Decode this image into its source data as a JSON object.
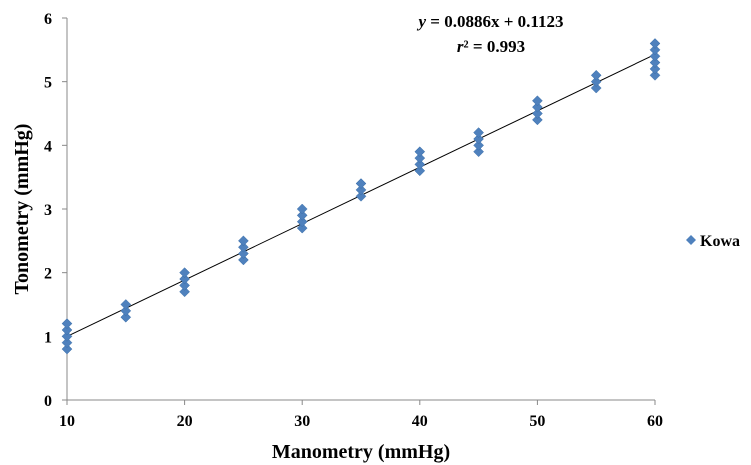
{
  "chart_data": {
    "type": "scatter",
    "xlabel": "Manometry (mmHg)",
    "ylabel": "Tonometry (mmHg)",
    "xlim": [
      10,
      60
    ],
    "ylim": [
      0,
      6
    ],
    "xticks": [
      "10",
      "20",
      "30",
      "40",
      "50",
      "60"
    ],
    "yticks": [
      "0",
      "1",
      "2",
      "3",
      "4",
      "5",
      "6"
    ],
    "grid": false,
    "legend_position": "right",
    "series": [
      {
        "name": "Kowa",
        "color": "#4F81BD",
        "marker": "diamond",
        "points": [
          {
            "x": 10,
            "y": 0.8
          },
          {
            "x": 10,
            "y": 0.9
          },
          {
            "x": 10,
            "y": 1.0
          },
          {
            "x": 10,
            "y": 1.1
          },
          {
            "x": 10,
            "y": 1.2
          },
          {
            "x": 15,
            "y": 1.3
          },
          {
            "x": 15,
            "y": 1.4
          },
          {
            "x": 15,
            "y": 1.5
          },
          {
            "x": 20,
            "y": 1.7
          },
          {
            "x": 20,
            "y": 1.8
          },
          {
            "x": 20,
            "y": 1.9
          },
          {
            "x": 20,
            "y": 2.0
          },
          {
            "x": 25,
            "y": 2.2
          },
          {
            "x": 25,
            "y": 2.3
          },
          {
            "x": 25,
            "y": 2.4
          },
          {
            "x": 25,
            "y": 2.5
          },
          {
            "x": 30,
            "y": 2.7
          },
          {
            "x": 30,
            "y": 2.8
          },
          {
            "x": 30,
            "y": 2.9
          },
          {
            "x": 30,
            "y": 3.0
          },
          {
            "x": 35,
            "y": 3.2
          },
          {
            "x": 35,
            "y": 3.3
          },
          {
            "x": 35,
            "y": 3.4
          },
          {
            "x": 40,
            "y": 3.6
          },
          {
            "x": 40,
            "y": 3.7
          },
          {
            "x": 40,
            "y": 3.8
          },
          {
            "x": 40,
            "y": 3.9
          },
          {
            "x": 45,
            "y": 3.9
          },
          {
            "x": 45,
            "y": 4.0
          },
          {
            "x": 45,
            "y": 4.1
          },
          {
            "x": 45,
            "y": 4.2
          },
          {
            "x": 50,
            "y": 4.4
          },
          {
            "x": 50,
            "y": 4.5
          },
          {
            "x": 50,
            "y": 4.6
          },
          {
            "x": 50,
            "y": 4.7
          },
          {
            "x": 55,
            "y": 4.9
          },
          {
            "x": 55,
            "y": 5.0
          },
          {
            "x": 55,
            "y": 5.1
          },
          {
            "x": 60,
            "y": 5.1
          },
          {
            "x": 60,
            "y": 5.2
          },
          {
            "x": 60,
            "y": 5.3
          },
          {
            "x": 60,
            "y": 5.4
          },
          {
            "x": 60,
            "y": 5.5
          },
          {
            "x": 60,
            "y": 5.6
          }
        ]
      }
    ],
    "trendline": {
      "type": "linear",
      "slope": 0.0886,
      "intercept": 0.1123,
      "color": "#000000"
    },
    "annotations": {
      "equation": "y = 0.0886x + 0.1123",
      "r_squared": "r² = 0.993"
    }
  }
}
